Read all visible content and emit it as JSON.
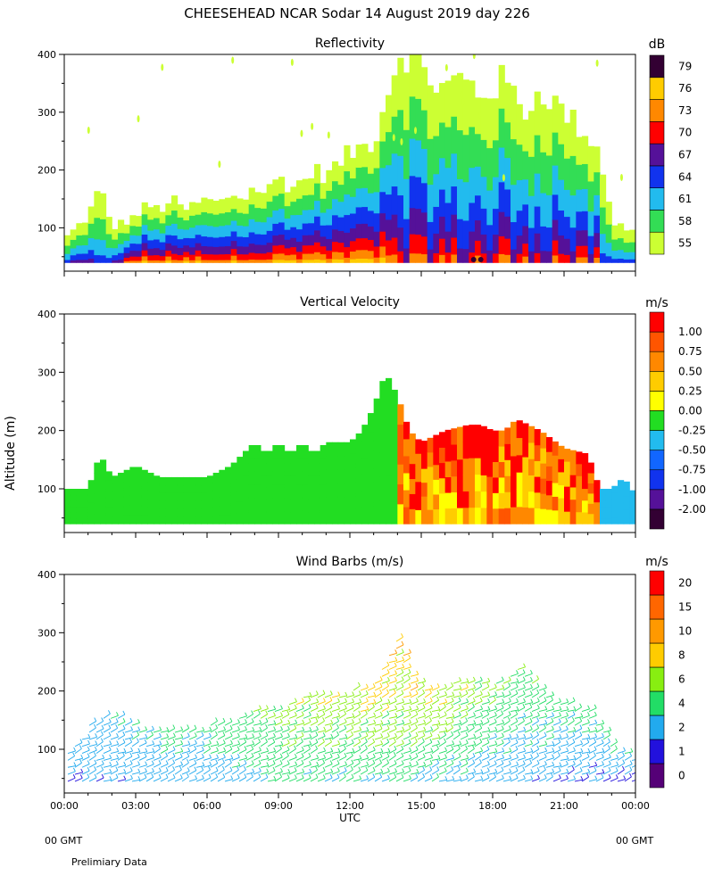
{
  "figure": {
    "title": "CHEESEHEAD   NCAR Sodar   14 August 2019   day 226",
    "ylabel": "Altitude (m)",
    "xlabel": "UTC",
    "xticks": [
      "00:00",
      "03:00",
      "06:00",
      "09:00",
      "12:00",
      "15:00",
      "18:00",
      "21:00",
      "00:00"
    ],
    "left_gmt": "00 GMT",
    "right_gmt": "00 GMT",
    "footer": "Prelimiary Data"
  },
  "colors": {
    "refl": [
      "#ccff33",
      "#33dd55",
      "#22bbee",
      "#1133ee",
      "#551199",
      "#ff0000",
      "#ff8800",
      "#ffcc00",
      "#330033"
    ],
    "vel": [
      "#330033",
      "#551199",
      "#1133ee",
      "#1166ff",
      "#22bbee",
      "#22dd22",
      "#ffff00",
      "#ffcc00",
      "#ff8800",
      "#ff5500",
      "#ff0000"
    ],
    "wind": [
      "#550077",
      "#2211dd",
      "#22aaee",
      "#22dd66",
      "#88ee11",
      "#ffcc00",
      "#ff9900",
      "#ff6600",
      "#ff0000"
    ]
  },
  "chart_data": [
    {
      "type": "heatmap",
      "title": "Reflectivity",
      "unit": "dB",
      "ylim": [
        25,
        400
      ],
      "yticks": [
        100,
        200,
        300,
        400
      ],
      "xlim_hours": [
        0,
        24
      ],
      "colorbar_labels": [
        "55",
        "58",
        "61",
        "64",
        "67",
        "70",
        "73",
        "76",
        "79"
      ],
      "echo_top_m": {
        "hours": [
          0,
          0.5,
          1,
          1.5,
          2,
          2.5,
          3,
          3.5,
          4,
          4.5,
          5,
          5.5,
          6,
          6.5,
          7,
          7.5,
          8,
          8.5,
          9,
          9.5,
          10,
          10.5,
          11,
          11.5,
          12,
          12.5,
          13,
          13.5,
          14,
          14.5,
          15,
          15.5,
          16,
          16.5,
          17,
          17.5,
          18,
          18.5,
          19,
          19.5,
          20,
          20.5,
          21,
          21.5,
          22,
          22.5,
          23,
          23.5,
          24
        ],
        "top": [
          80,
          100,
          120,
          170,
          100,
          110,
          120,
          140,
          130,
          150,
          130,
          140,
          150,
          140,
          160,
          150,
          170,
          160,
          190,
          170,
          180,
          200,
          190,
          210,
          230,
          240,
          250,
          320,
          400,
          400,
          380,
          350,
          340,
          360,
          350,
          330,
          340,
          360,
          320,
          300,
          340,
          320,
          300,
          280,
          260,
          230,
          110,
          100,
          95
        ]
      },
      "dominant_core": "70-76 dB below 100 m from 02:30 to 13:00; 55-67 dB plumes to 400 m from 13:30 to 22:30"
    },
    {
      "type": "heatmap",
      "title": "Vertical Velocity",
      "unit": "m/s",
      "ylim": [
        25,
        400
      ],
      "yticks": [
        100,
        200,
        300,
        400
      ],
      "xlim_hours": [
        0,
        24
      ],
      "colorbar_labels": [
        "-2.00",
        "-1.00",
        "-0.75",
        "-0.50",
        "-0.25",
        "0.00",
        "0.25",
        "0.50",
        "0.75",
        "1.00"
      ],
      "data_top_m": {
        "hours": [
          0,
          1,
          1.5,
          2,
          3,
          4,
          5,
          6,
          7,
          7.5,
          8,
          8.5,
          9,
          9.5,
          10,
          10.5,
          11,
          12,
          12.5,
          13,
          13.5,
          14,
          14.5,
          15,
          16,
          17,
          17.5,
          18,
          18.5,
          19,
          20,
          21,
          22,
          22.5,
          23,
          23.5,
          24
        ],
        "top": [
          100,
          100,
          160,
          120,
          140,
          120,
          120,
          120,
          140,
          160,
          180,
          160,
          180,
          160,
          180,
          160,
          180,
          180,
          200,
          240,
          300,
          260,
          200,
          180,
          200,
          210,
          210,
          200,
          200,
          220,
          200,
          170,
          160,
          100,
          100,
          120,
          90
        ]
      },
      "regimes": [
        {
          "from_h": 0,
          "to_h": 13.8,
          "value": 0.0
        },
        {
          "from_h": 13.8,
          "to_h": 22.5,
          "value": 0.5
        },
        {
          "from_h": 22.5,
          "to_h": 24,
          "value": -0.25
        }
      ]
    },
    {
      "type": "scatter",
      "title": "Wind Barbs (m/s)",
      "unit": "m/s",
      "ylim": [
        25,
        400
      ],
      "yticks": [
        100,
        200,
        300,
        400
      ],
      "xlim_hours": [
        0,
        24
      ],
      "colorbar_labels": [
        "0",
        "1",
        "2",
        "4",
        "6",
        "8",
        "10",
        "15",
        "20"
      ],
      "wind_top_m": {
        "hours": [
          0,
          1,
          2,
          3,
          4,
          5,
          6,
          7,
          8,
          9,
          10,
          11,
          12,
          13,
          13.5,
          14,
          14.5,
          15,
          16,
          17,
          18,
          19,
          20,
          21,
          22,
          23,
          24
        ],
        "top": [
          90,
          140,
          160,
          140,
          140,
          130,
          140,
          150,
          170,
          170,
          190,
          190,
          200,
          210,
          260,
          300,
          230,
          210,
          210,
          220,
          210,
          240,
          200,
          180,
          170,
          110,
          90
        ]
      },
      "speed_profile_ms": [
        {
          "hours": 0,
          "low": 1.5,
          "high": 2
        },
        {
          "hours": 6,
          "low": 2,
          "high": 4
        },
        {
          "hours": 9,
          "low": 3,
          "high": 6
        },
        {
          "hours": 12,
          "low": 3,
          "high": 7
        },
        {
          "hours": 14,
          "low": 3,
          "high": 9
        },
        {
          "hours": 18,
          "low": 2,
          "high": 5
        },
        {
          "hours": 24,
          "low": 1,
          "high": 3
        }
      ]
    }
  ]
}
